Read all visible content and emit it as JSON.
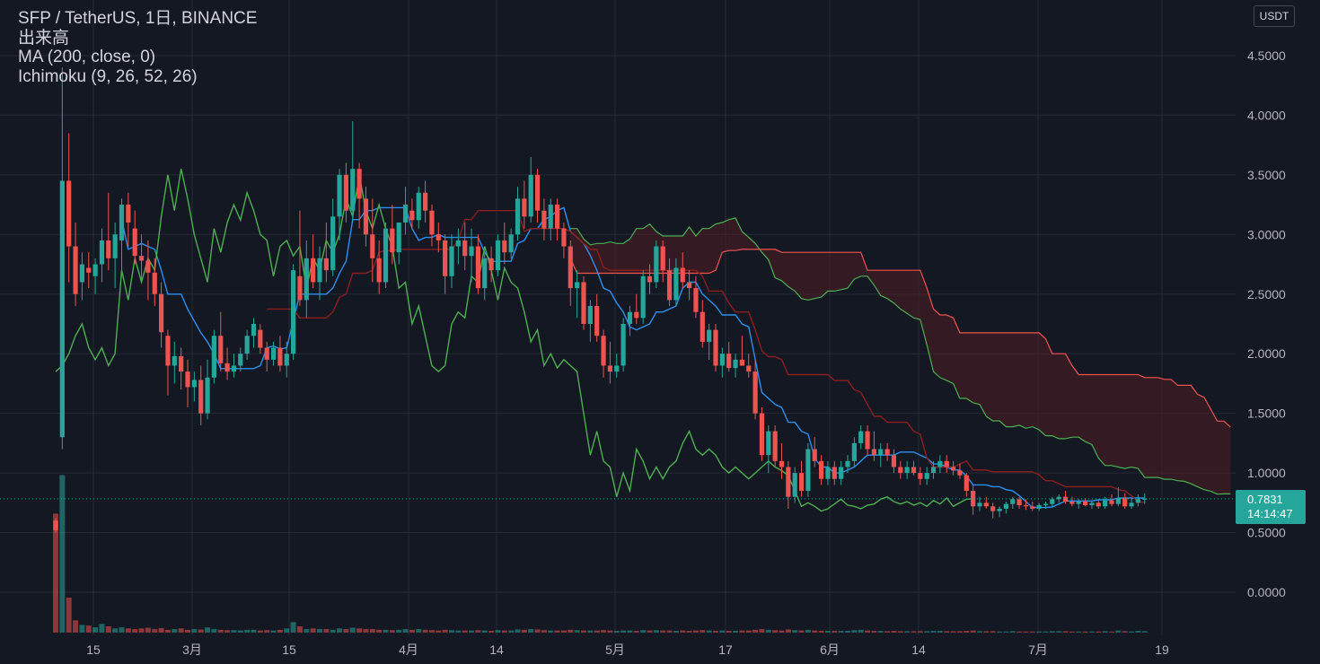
{
  "header": {
    "symbol_line": "SFP / TetherUS, 1日, BINANCE",
    "volume_label": "出来高",
    "ma_label": "MA (200, close, 0)",
    "ichimoku_label": "Ichimoku (9, 26, 52, 26)"
  },
  "currency_button": "USDT",
  "last_price": {
    "value": "0.7831",
    "countdown": "14:14:47"
  },
  "colors": {
    "background": "#141823",
    "grid": "#252a36",
    "up": "#26a69a",
    "down": "#ef5350",
    "conversion_line": "#2a90f0",
    "lagging_span": "#4caf50",
    "base_line": "#8b1e1e",
    "cloud_up_fill": "#1b4d2e",
    "cloud_down_fill": "#5a1d22"
  },
  "chart_data": {
    "type": "candlestick",
    "yaxis": {
      "ticks": [
        "4.5000",
        "4.0000",
        "3.5000",
        "3.0000",
        "2.5000",
        "2.0000",
        "1.5000",
        "1.0000",
        "0.5000",
        "0.0000"
      ]
    },
    "xaxis": {
      "ticks": [
        "15",
        "3月",
        "15",
        "4月",
        "14",
        "5月",
        "17",
        "6月",
        "14",
        "7月",
        "19"
      ]
    },
    "ohlc": [
      [
        0.6,
        0.62,
        0.5,
        0.52
      ],
      [
        1.3,
        4.4,
        1.2,
        3.45
      ],
      [
        3.45,
        3.85,
        2.6,
        2.9
      ],
      [
        2.9,
        3.1,
        2.4,
        2.5
      ],
      [
        2.6,
        2.85,
        2.45,
        2.75
      ],
      [
        2.72,
        2.85,
        2.55,
        2.68
      ],
      [
        2.65,
        2.8,
        2.5,
        2.75
      ],
      [
        2.75,
        3.05,
        2.6,
        2.95
      ],
      [
        2.95,
        3.35,
        2.7,
        2.8
      ],
      [
        2.8,
        3.1,
        2.55,
        3.0
      ],
      [
        2.95,
        3.3,
        2.65,
        3.25
      ],
      [
        3.25,
        3.35,
        2.9,
        3.1
      ],
      [
        3.05,
        3.2,
        2.75,
        2.82
      ],
      [
        2.82,
        3.0,
        2.6,
        2.78
      ],
      [
        2.78,
        2.95,
        2.45,
        2.68
      ],
      [
        2.68,
        2.8,
        2.4,
        2.5
      ],
      [
        2.5,
        2.6,
        2.05,
        2.18
      ],
      [
        2.15,
        2.2,
        1.65,
        1.9
      ],
      [
        1.9,
        2.1,
        1.75,
        1.98
      ],
      [
        1.98,
        2.05,
        1.7,
        1.85
      ],
      [
        1.85,
        1.95,
        1.55,
        1.72
      ],
      [
        1.72,
        1.85,
        1.6,
        1.78
      ],
      [
        1.78,
        1.9,
        1.4,
        1.5
      ],
      [
        1.5,
        1.95,
        1.45,
        1.8
      ],
      [
        1.8,
        2.2,
        1.75,
        2.15
      ],
      [
        2.15,
        2.35,
        1.85,
        1.92
      ],
      [
        1.92,
        2.05,
        1.78,
        1.85
      ],
      [
        1.85,
        2.0,
        1.8,
        1.9
      ],
      [
        1.9,
        2.05,
        1.85,
        2.0
      ],
      [
        2.0,
        2.2,
        1.95,
        2.15
      ],
      [
        2.15,
        2.3,
        2.05,
        2.25
      ],
      [
        2.2,
        2.25,
        2.0,
        2.05
      ],
      [
        2.05,
        2.1,
        1.85,
        1.95
      ],
      [
        1.95,
        2.1,
        1.9,
        2.05
      ],
      [
        2.05,
        2.15,
        1.85,
        1.9
      ],
      [
        1.9,
        2.1,
        1.8,
        2.0
      ],
      [
        2.0,
        2.75,
        1.95,
        2.7
      ],
      [
        2.65,
        3.2,
        2.4,
        2.45
      ],
      [
        2.45,
        2.95,
        2.3,
        2.8
      ],
      [
        2.8,
        3.0,
        2.55,
        2.6
      ],
      [
        2.6,
        2.9,
        2.45,
        2.8
      ],
      [
        2.8,
        3.1,
        2.6,
        2.7
      ],
      [
        2.7,
        3.3,
        2.65,
        3.15
      ],
      [
        3.15,
        3.55,
        2.95,
        3.5
      ],
      [
        3.5,
        3.6,
        3.1,
        3.2
      ],
      [
        3.2,
        3.95,
        3.1,
        3.55
      ],
      [
        3.55,
        3.6,
        3.05,
        3.3
      ],
      [
        3.3,
        3.4,
        2.9,
        3.0
      ],
      [
        3.0,
        3.3,
        2.6,
        2.8
      ],
      [
        2.8,
        2.95,
        2.5,
        2.6
      ],
      [
        2.6,
        3.1,
        2.55,
        3.05
      ],
      [
        3.05,
        3.25,
        2.75,
        2.85
      ],
      [
        2.85,
        3.1,
        2.75,
        3.1
      ],
      [
        3.1,
        3.4,
        3.0,
        3.25
      ],
      [
        3.2,
        3.3,
        3.05,
        3.12
      ],
      [
        3.12,
        3.4,
        3.05,
        3.35
      ],
      [
        3.35,
        3.45,
        3.1,
        3.2
      ],
      [
        3.2,
        3.25,
        2.9,
        3.0
      ],
      [
        3.0,
        3.1,
        2.85,
        2.95
      ],
      [
        2.95,
        3.0,
        2.5,
        2.65
      ],
      [
        2.65,
        3.0,
        2.55,
        2.9
      ],
      [
        2.9,
        3.05,
        2.75,
        2.95
      ],
      [
        2.95,
        3.1,
        2.7,
        2.82
      ],
      [
        2.82,
        3.05,
        2.6,
        2.9
      ],
      [
        2.9,
        3.0,
        2.5,
        2.55
      ],
      [
        2.55,
        2.85,
        2.45,
        2.8
      ],
      [
        2.8,
        2.9,
        2.6,
        2.7
      ],
      [
        2.7,
        3.0,
        2.65,
        2.95
      ],
      [
        2.95,
        3.1,
        2.75,
        2.85
      ],
      [
        2.85,
        3.05,
        2.8,
        3.0
      ],
      [
        3.0,
        3.4,
        2.95,
        3.3
      ],
      [
        3.3,
        3.45,
        3.05,
        3.15
      ],
      [
        3.15,
        3.65,
        3.1,
        3.5
      ],
      [
        3.5,
        3.55,
        3.1,
        3.2
      ],
      [
        3.2,
        3.3,
        2.95,
        3.05
      ],
      [
        3.05,
        3.3,
        2.95,
        3.25
      ],
      [
        3.25,
        3.3,
        2.95,
        3.05
      ],
      [
        3.05,
        3.1,
        2.8,
        2.9
      ],
      [
        2.9,
        2.95,
        2.4,
        2.55
      ],
      [
        2.55,
        2.7,
        2.3,
        2.6
      ],
      [
        2.6,
        2.65,
        2.2,
        2.25
      ],
      [
        2.25,
        2.45,
        2.1,
        2.4
      ],
      [
        2.4,
        2.5,
        2.1,
        2.15
      ],
      [
        2.15,
        2.2,
        1.8,
        1.9
      ],
      [
        1.9,
        2.1,
        1.75,
        1.85
      ],
      [
        1.85,
        2.0,
        1.8,
        1.9
      ],
      [
        1.9,
        2.3,
        1.85,
        2.25
      ],
      [
        2.25,
        2.4,
        2.15,
        2.35
      ],
      [
        2.35,
        2.5,
        2.25,
        2.3
      ],
      [
        2.3,
        2.7,
        2.25,
        2.65
      ],
      [
        2.65,
        2.75,
        2.5,
        2.6
      ],
      [
        2.6,
        2.95,
        2.55,
        2.9
      ],
      [
        2.9,
        2.95,
        2.6,
        2.7
      ],
      [
        2.7,
        2.8,
        2.4,
        2.45
      ],
      [
        2.45,
        2.8,
        2.4,
        2.72
      ],
      [
        2.72,
        2.85,
        2.55,
        2.6
      ],
      [
        2.6,
        2.7,
        2.45,
        2.55
      ],
      [
        2.55,
        2.65,
        2.3,
        2.35
      ],
      [
        2.35,
        2.45,
        2.05,
        2.1
      ],
      [
        2.1,
        2.25,
        1.95,
        2.2
      ],
      [
        2.2,
        2.25,
        1.85,
        1.9
      ],
      [
        1.9,
        2.05,
        1.8,
        2.0
      ],
      [
        2.0,
        2.1,
        1.85,
        1.88
      ],
      [
        1.88,
        2.0,
        1.8,
        1.95
      ],
      [
        1.95,
        2.15,
        1.9,
        1.9
      ],
      [
        1.9,
        2.0,
        1.8,
        1.85
      ],
      [
        1.85,
        1.95,
        1.45,
        1.5
      ],
      [
        1.5,
        1.55,
        1.1,
        1.15
      ],
      [
        1.15,
        1.4,
        1.0,
        1.35
      ],
      [
        1.35,
        1.4,
        1.05,
        1.1
      ],
      [
        1.1,
        1.25,
        0.95,
        1.05
      ],
      [
        1.05,
        1.1,
        0.7,
        0.8
      ],
      [
        0.8,
        1.05,
        0.75,
        1.0
      ],
      [
        1.0,
        1.1,
        0.8,
        0.85
      ],
      [
        0.85,
        1.25,
        0.8,
        1.2
      ],
      [
        1.2,
        1.3,
        1.05,
        1.1
      ],
      [
        1.1,
        1.15,
        0.9,
        0.95
      ],
      [
        0.95,
        1.1,
        0.9,
        1.05
      ],
      [
        1.05,
        1.1,
        0.9,
        0.95
      ],
      [
        0.95,
        1.1,
        0.9,
        1.05
      ],
      [
        1.05,
        1.15,
        1.0,
        1.1
      ],
      [
        1.1,
        1.3,
        1.05,
        1.25
      ],
      [
        1.25,
        1.4,
        1.2,
        1.35
      ],
      [
        1.35,
        1.4,
        1.15,
        1.2
      ],
      [
        1.2,
        1.35,
        1.1,
        1.15
      ],
      [
        1.15,
        1.25,
        1.05,
        1.2
      ],
      [
        1.2,
        1.25,
        1.1,
        1.15
      ],
      [
        1.15,
        1.2,
        1.0,
        1.05
      ],
      [
        1.05,
        1.1,
        0.95,
        1.0
      ],
      [
        1.0,
        1.1,
        0.95,
        1.05
      ],
      [
        1.05,
        1.1,
        0.98,
        1.0
      ],
      [
        1.0,
        1.05,
        0.9,
        0.95
      ],
      [
        0.95,
        1.05,
        0.9,
        1.0
      ],
      [
        1.0,
        1.1,
        0.95,
        1.05
      ],
      [
        1.05,
        1.15,
        1.0,
        1.1
      ],
      [
        1.1,
        1.15,
        1.0,
        1.05
      ],
      [
        1.05,
        1.1,
        0.98,
        1.02
      ],
      [
        1.02,
        1.08,
        0.95,
        0.98
      ],
      [
        0.98,
        1.0,
        0.8,
        0.85
      ],
      [
        0.85,
        0.9,
        0.65,
        0.72
      ],
      [
        0.72,
        0.8,
        0.68,
        0.75
      ],
      [
        0.75,
        0.8,
        0.7,
        0.72
      ],
      [
        0.72,
        0.75,
        0.62,
        0.68
      ],
      [
        0.68,
        0.72,
        0.63,
        0.7
      ],
      [
        0.7,
        0.76,
        0.66,
        0.74
      ],
      [
        0.74,
        0.8,
        0.7,
        0.78
      ],
      [
        0.78,
        0.8,
        0.7,
        0.73
      ],
      [
        0.73,
        0.78,
        0.69,
        0.72
      ],
      [
        0.72,
        0.76,
        0.68,
        0.7
      ],
      [
        0.7,
        0.75,
        0.68,
        0.73
      ],
      [
        0.73,
        0.76,
        0.7,
        0.74
      ],
      [
        0.74,
        0.8,
        0.72,
        0.78
      ],
      [
        0.78,
        0.82,
        0.75,
        0.8
      ],
      [
        0.8,
        0.85,
        0.74,
        0.76
      ],
      [
        0.76,
        0.8,
        0.72,
        0.74
      ],
      [
        0.74,
        0.78,
        0.7,
        0.76
      ],
      [
        0.76,
        0.79,
        0.72,
        0.73
      ],
      [
        0.73,
        0.77,
        0.7,
        0.75
      ],
      [
        0.75,
        0.78,
        0.7,
        0.72
      ],
      [
        0.72,
        0.8,
        0.7,
        0.77
      ],
      [
        0.77,
        0.82,
        0.72,
        0.74
      ],
      [
        0.74,
        0.88,
        0.72,
        0.79
      ],
      [
        0.79,
        0.83,
        0.7,
        0.72
      ],
      [
        0.72,
        0.78,
        0.7,
        0.75
      ],
      [
        0.75,
        0.82,
        0.72,
        0.78
      ],
      [
        0.78,
        0.83,
        0.74,
        0.7831
      ]
    ],
    "volume": [
      3.4,
      4.5,
      1.0,
      0.35,
      0.22,
      0.2,
      0.15,
      0.25,
      0.18,
      0.12,
      0.15,
      0.12,
      0.1,
      0.12,
      0.14,
      0.1,
      0.13,
      0.08,
      0.1,
      0.12,
      0.08,
      0.1,
      0.09,
      0.15,
      0.1,
      0.08,
      0.07,
      0.07,
      0.06,
      0.08,
      0.08,
      0.06,
      0.07,
      0.06,
      0.08,
      0.12,
      0.3,
      0.18,
      0.1,
      0.12,
      0.1,
      0.1,
      0.08,
      0.12,
      0.1,
      0.14,
      0.12,
      0.1,
      0.1,
      0.08,
      0.08,
      0.07,
      0.08,
      0.1,
      0.08,
      0.1,
      0.08,
      0.07,
      0.06,
      0.08,
      0.07,
      0.06,
      0.06,
      0.06,
      0.07,
      0.06,
      0.05,
      0.07,
      0.06,
      0.06,
      0.09,
      0.08,
      0.1,
      0.09,
      0.07,
      0.06,
      0.06,
      0.06,
      0.08,
      0.07,
      0.06,
      0.06,
      0.06,
      0.07,
      0.06,
      0.05,
      0.06,
      0.06,
      0.05,
      0.07,
      0.06,
      0.07,
      0.06,
      0.06,
      0.05,
      0.06,
      0.05,
      0.06,
      0.07,
      0.06,
      0.05,
      0.06,
      0.05,
      0.05,
      0.06,
      0.06,
      0.08,
      0.1,
      0.08,
      0.07,
      0.06,
      0.09,
      0.07,
      0.06,
      0.08,
      0.06,
      0.05,
      0.05,
      0.05,
      0.05,
      0.05,
      0.07,
      0.08,
      0.06,
      0.05,
      0.05,
      0.04,
      0.05,
      0.04,
      0.04,
      0.04,
      0.04,
      0.04,
      0.05,
      0.05,
      0.04,
      0.04,
      0.04,
      0.05,
      0.06,
      0.04,
      0.04,
      0.04,
      0.03,
      0.03,
      0.04,
      0.03,
      0.03,
      0.03,
      0.03,
      0.03,
      0.04,
      0.04,
      0.04,
      0.03,
      0.03,
      0.03,
      0.03,
      0.03,
      0.04,
      0.03,
      0.06,
      0.04,
      0.03,
      0.05,
      0.04
    ],
    "conversion_line_start": 10,
    "base_line_start": 32,
    "lagging_span_end": 149,
    "cloud_start": 80,
    "cloud_end": 170
  }
}
